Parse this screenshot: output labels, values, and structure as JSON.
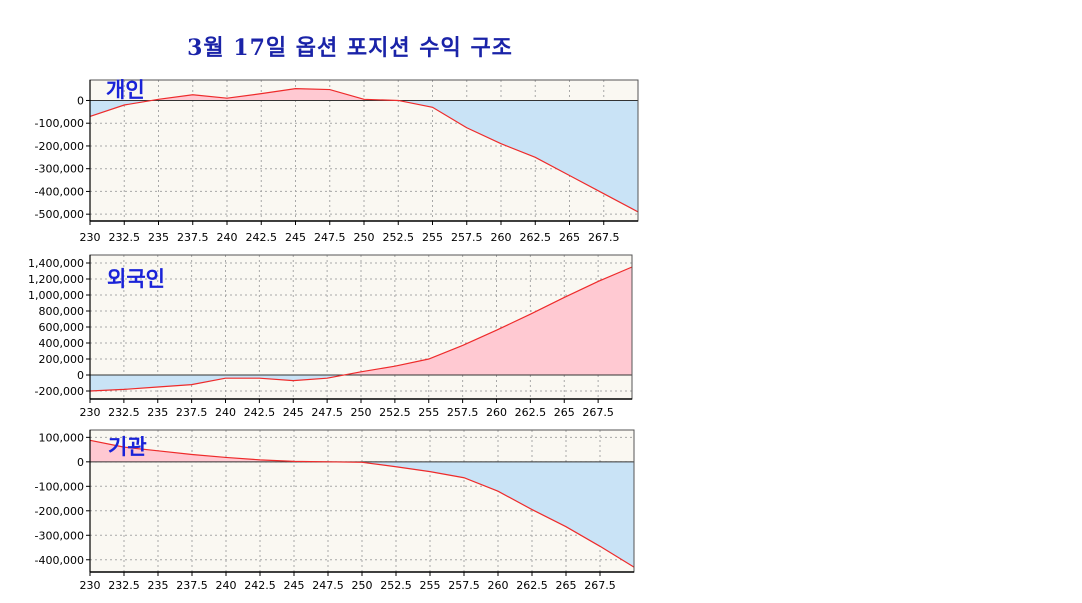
{
  "title": "3월 17일 옵션 포지션 수익 구조",
  "colors": {
    "line": "#ee2b2b",
    "positive_fill": "#ffc9d2",
    "negative_fill": "#c9e3f6",
    "plot_bg": "#faf8f2",
    "grid": "#a8a8a8",
    "label": "#1a23d8",
    "title": "#1a23a8"
  },
  "chart_data": [
    {
      "type": "area",
      "label": "개인",
      "xlabel": "",
      "ylabel": "",
      "xlim": [
        230,
        270
      ],
      "ylim": [
        -530000,
        90000
      ],
      "x_ticks": [
        "230",
        "232.5",
        "235",
        "237.5",
        "240",
        "242.5",
        "245",
        "247.5",
        "250",
        "252.5",
        "255",
        "257.5",
        "260",
        "262.5",
        "265",
        "267.5"
      ],
      "y_ticks": [
        "0",
        "-100,000",
        "-200,000",
        "-300,000",
        "-400,000",
        "-500,000"
      ],
      "y_tick_values": [
        0,
        -100000,
        -200000,
        -300000,
        -400000,
        -500000
      ],
      "grid": true,
      "x": [
        230,
        232.5,
        235,
        237.5,
        240,
        242.5,
        245,
        247.5,
        250,
        252.5,
        255,
        257.5,
        260,
        262.5,
        265,
        267.5,
        270
      ],
      "y": [
        -70000,
        -20000,
        5000,
        25000,
        10000,
        30000,
        52000,
        48000,
        5000,
        0,
        -30000,
        -120000,
        -190000,
        -250000,
        -330000,
        -410000,
        -490000
      ]
    },
    {
      "type": "area",
      "label": "외국인",
      "xlabel": "",
      "ylabel": "",
      "xlim": [
        230,
        270
      ],
      "ylim": [
        -300000,
        1500000
      ],
      "x_ticks": [
        "230",
        "232.5",
        "235",
        "237.5",
        "240",
        "242.5",
        "245",
        "247.5",
        "250",
        "252.5",
        "255",
        "257.5",
        "260",
        "262.5",
        "265",
        "267.5"
      ],
      "y_ticks": [
        "1,400,000",
        "1,200,000",
        "1,000,000",
        "800,000",
        "600,000",
        "400,000",
        "200,000",
        "0",
        "-200,000"
      ],
      "y_tick_values": [
        1400000,
        1200000,
        1000000,
        800000,
        600000,
        400000,
        200000,
        0,
        -200000
      ],
      "grid": true,
      "x": [
        230,
        232.5,
        235,
        237.5,
        240,
        242.5,
        245,
        247.5,
        250,
        252.5,
        255,
        257.5,
        260,
        262.5,
        265,
        267.5,
        270
      ],
      "y": [
        -200000,
        -180000,
        -150000,
        -120000,
        -40000,
        -40000,
        -70000,
        -40000,
        40000,
        110000,
        200000,
        370000,
        560000,
        760000,
        970000,
        1170000,
        1350000
      ]
    },
    {
      "type": "area",
      "label": "기관",
      "xlabel": "",
      "ylabel": "",
      "xlim": [
        230,
        270
      ],
      "ylim": [
        -450000,
        130000
      ],
      "x_ticks": [
        "230",
        "232.5",
        "235",
        "237.5",
        "240",
        "242.5",
        "245",
        "247.5",
        "250",
        "252.5",
        "255",
        "257.5",
        "260",
        "262.5",
        "265",
        "267.5"
      ],
      "y_ticks": [
        "100,000",
        "0",
        "-100,000",
        "-200,000",
        "-300,000",
        "-400,000"
      ],
      "y_tick_values": [
        100000,
        0,
        -100000,
        -200000,
        -300000,
        -400000
      ],
      "grid": true,
      "x": [
        230,
        232.5,
        235,
        237.5,
        240,
        242.5,
        245,
        247.5,
        250,
        252.5,
        255,
        257.5,
        260,
        262.5,
        265,
        267.5,
        270
      ],
      "y": [
        88000,
        60000,
        45000,
        30000,
        18000,
        8000,
        2000,
        0,
        -2000,
        -20000,
        -40000,
        -65000,
        -120000,
        -195000,
        -265000,
        -345000,
        -430000
      ]
    }
  ]
}
